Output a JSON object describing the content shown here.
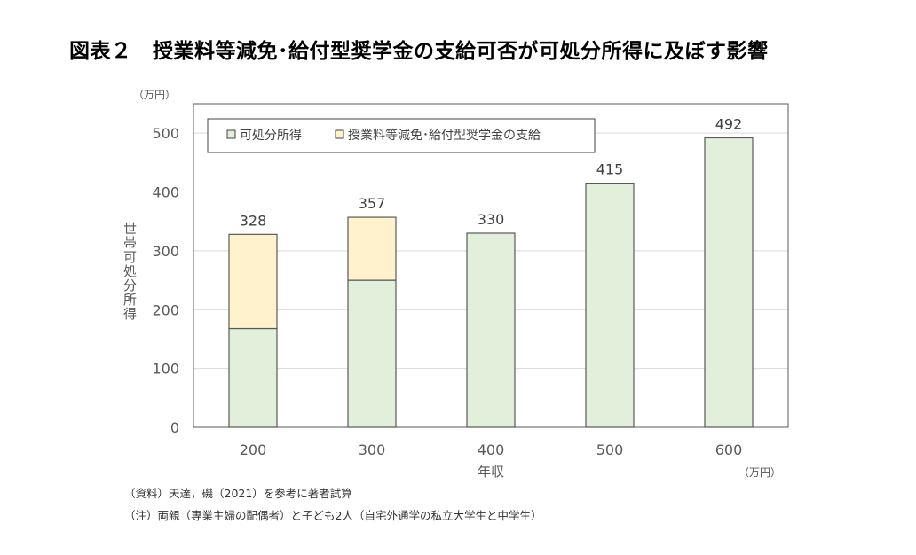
{
  "chart_data": {
    "type": "bar",
    "stacked": true,
    "title": "図表２　授業料等減免･給付型奨学金の支給可否が可処分所得に及ぼす影響",
    "xlabel": "年収",
    "xunit": "（万円）",
    "ylabel": "世帯可処分所得",
    "yunit": "（万円）",
    "ylim": [
      0,
      550
    ],
    "yticks": [
      0,
      100,
      200,
      300,
      400,
      500
    ],
    "grid": true,
    "legend_position": "top-left",
    "categories": [
      "200",
      "300",
      "400",
      "500",
      "600"
    ],
    "series": [
      {
        "name": "可処分所得",
        "color": "#e2efda",
        "values": [
          168,
          250,
          330,
          415,
          492
        ]
      },
      {
        "name": "授業料等減免･給付型奨学金の支給",
        "color": "#fff2cc",
        "values": [
          160,
          107,
          0,
          0,
          0
        ]
      }
    ],
    "total_labels": [
      "328",
      "357",
      "330",
      "415",
      "492"
    ]
  },
  "notes": [
    "（資料）天達，磯（2021）を参考に著者試算",
    "（注）両親（専業主婦の配偶者）と子ども2人（自宅外通学の私立大学生と中学生）"
  ]
}
